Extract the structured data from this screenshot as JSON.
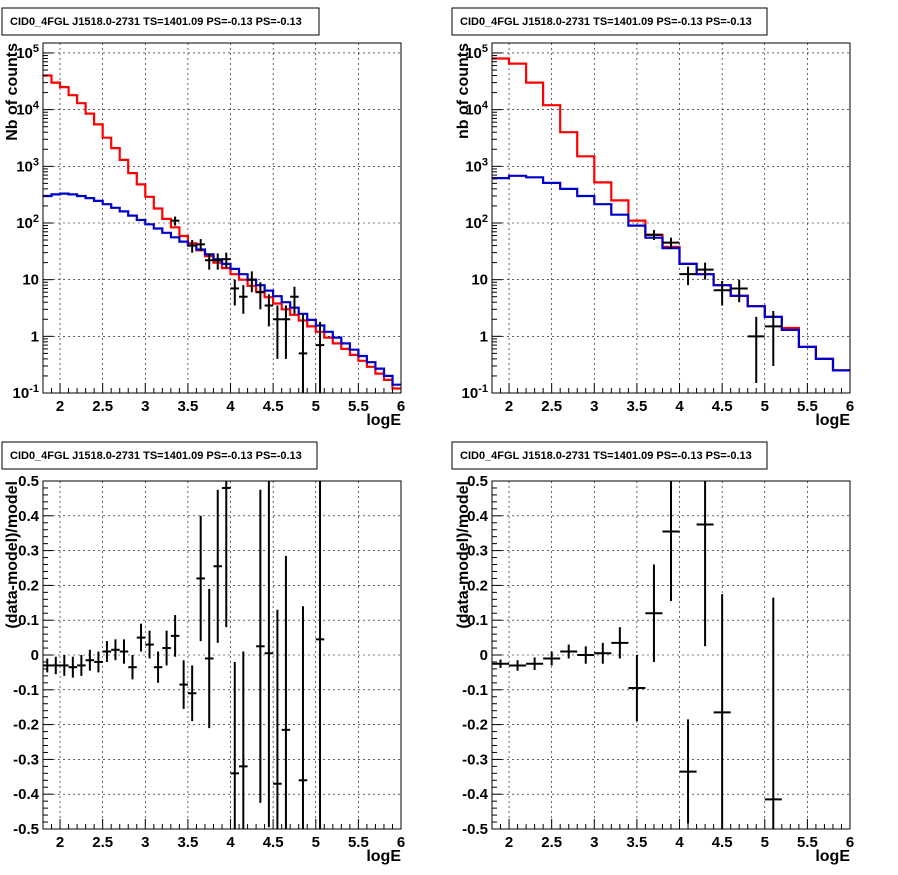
{
  "chart_data": [
    {
      "type": "line",
      "title": "CID0_4FGL J1518.0-2731 TS=1401.09 PS=-0.13 PS=-0.13",
      "xlabel": "logE",
      "ylabel": "Nb of counts",
      "xlim": [
        1.8,
        6.0
      ],
      "ylim": [
        0.1,
        150000
      ],
      "yscale": "log",
      "grid": true,
      "xticks": [
        "2",
        "2.5",
        "3",
        "3.5",
        "4",
        "4.5",
        "5",
        "5.5",
        "6"
      ],
      "yticks": [
        "10^-1",
        "1",
        "10",
        "10^2",
        "10^3",
        "10^4",
        "10^5"
      ],
      "step_width": 0.1,
      "series": [
        {
          "color": "#ff0000",
          "style": "step",
          "x": [
            1.8,
            1.9,
            2.0,
            2.1,
            2.2,
            2.3,
            2.4,
            2.5,
            2.6,
            2.7,
            2.8,
            2.9,
            3.0,
            3.1,
            3.2,
            3.3,
            3.4,
            3.5,
            3.6,
            3.7,
            3.8,
            3.9,
            4.0,
            4.1,
            4.2,
            4.3,
            4.4,
            4.5,
            4.6,
            4.7,
            4.8,
            4.9,
            5.0,
            5.1,
            5.2,
            5.3,
            5.4,
            5.5,
            5.6,
            5.7,
            5.8,
            5.9
          ],
          "y": [
            40000,
            30000,
            25000,
            18000,
            13000,
            8500,
            5500,
            3200,
            2100,
            1300,
            760,
            480,
            290,
            180,
            118,
            84,
            59,
            44,
            33,
            26,
            20,
            16,
            12.5,
            10,
            7.8,
            6.1,
            4.9,
            3.8,
            3.0,
            2.4,
            1.9,
            1.5,
            1.2,
            0.95,
            0.75,
            0.6,
            0.47,
            0.37,
            0.29,
            0.22,
            0.17,
            0.12
          ]
        },
        {
          "color": "#0000cc",
          "style": "step",
          "x": [
            1.8,
            1.9,
            2.0,
            2.1,
            2.2,
            2.3,
            2.4,
            2.5,
            2.6,
            2.7,
            2.8,
            2.9,
            3.0,
            3.1,
            3.2,
            3.3,
            3.4,
            3.5,
            3.6,
            3.7,
            3.8,
            3.9,
            4.0,
            4.1,
            4.2,
            4.3,
            4.4,
            4.5,
            4.6,
            4.7,
            4.8,
            4.9,
            5.0,
            5.1,
            5.2,
            5.3,
            5.4,
            5.5,
            5.6,
            5.7,
            5.8,
            5.9
          ],
          "y": [
            300,
            320,
            330,
            320,
            300,
            275,
            245,
            215,
            185,
            160,
            135,
            113,
            95,
            80,
            67,
            56,
            47,
            40,
            34,
            28,
            23,
            19,
            15.5,
            12.5,
            10,
            8,
            6.4,
            5.1,
            4,
            3.2,
            2.5,
            1.95,
            1.55,
            1.2,
            0.95,
            0.75,
            0.58,
            0.45,
            0.35,
            0.27,
            0.2,
            0.14
          ]
        },
        {
          "color": "#000000",
          "style": "points",
          "x": [
            3.35,
            3.55,
            3.65,
            3.75,
            3.85,
            3.95,
            4.05,
            4.15,
            4.25,
            4.35,
            4.45,
            4.55,
            4.65,
            4.75,
            4.85,
            5.05
          ],
          "y": [
            110,
            40,
            42,
            22,
            22,
            23,
            7,
            5,
            10,
            6,
            3.5,
            2,
            2,
            5,
            0.5,
            0.7
          ],
          "ylow": [
            90,
            30,
            32,
            15,
            15,
            16,
            3.5,
            2.5,
            6,
            3,
            1.5,
            0.4,
            0.4,
            2.5,
            0.1,
            0.1
          ],
          "yhigh": [
            130,
            50,
            52,
            29,
            29,
            30,
            10,
            8,
            14,
            9,
            5.5,
            3.5,
            3.5,
            7.5,
            2.5,
            1.8
          ]
        }
      ]
    },
    {
      "type": "line",
      "title": "CID0_4FGL J1518.0-2731 TS=1401.09 PS=-0.13 PS=-0.13",
      "xlabel": "logE",
      "ylabel": "nb of counts",
      "xlim": [
        1.8,
        6.0
      ],
      "ylim": [
        0.1,
        150000
      ],
      "yscale": "log",
      "grid": true,
      "xticks": [
        "2",
        "2.5",
        "3",
        "3.5",
        "4",
        "4.5",
        "5",
        "5.5",
        "6"
      ],
      "yticks": [
        "10^-1",
        "1",
        "10",
        "10^2",
        "10^3",
        "10^4",
        "10^5"
      ],
      "step_width": 0.2,
      "series": [
        {
          "color": "#ff0000",
          "style": "step",
          "x": [
            1.8,
            2.0,
            2.2,
            2.4,
            2.6,
            2.8,
            3.0,
            3.2,
            3.4,
            3.6,
            3.8,
            4.0,
            4.2,
            4.4,
            4.6,
            4.8,
            5.0,
            5.2,
            5.4,
            5.6,
            5.8
          ],
          "y": [
            80000,
            65000,
            30000,
            12000,
            4000,
            1500,
            520,
            250,
            110,
            62,
            38,
            19,
            12.5,
            8,
            5.2,
            3.4,
            2.2,
            1.4,
            0.65,
            0.4,
            0.25
          ]
        },
        {
          "color": "#0000cc",
          "style": "step",
          "x": [
            1.8,
            2.0,
            2.2,
            2.4,
            2.6,
            2.8,
            3.0,
            3.2,
            3.4,
            3.6,
            3.8,
            4.0,
            4.2,
            4.4,
            4.6,
            4.8,
            5.0,
            5.2,
            5.4,
            5.6,
            5.8
          ],
          "y": [
            620,
            680,
            640,
            510,
            400,
            300,
            215,
            140,
            90,
            55,
            36,
            19,
            12.5,
            8,
            5.2,
            3.4,
            2.2,
            1.3,
            0.65,
            0.4,
            0.25
          ]
        },
        {
          "color": "#000000",
          "style": "points",
          "x": [
            3.7,
            3.9,
            4.1,
            4.3,
            4.5,
            4.7,
            4.9,
            5.1
          ],
          "y": [
            62,
            45,
            12.5,
            15,
            6.5,
            7,
            1,
            1.5
          ],
          "ylow": [
            50,
            35,
            8,
            10,
            3.5,
            4,
            0.15,
            0.3
          ],
          "yhigh": [
            75,
            55,
            17,
            20,
            9.5,
            10,
            2.2,
            2.8
          ]
        }
      ]
    },
    {
      "type": "scatter",
      "title": "CID0_4FGL J1518.0-2731 TS=1401.09 PS=-0.13 PS=-0.13",
      "xlabel": "logE",
      "ylabel": "(data-model)/model",
      "xlim": [
        1.8,
        6.0
      ],
      "ylim": [
        -0.5,
        0.5
      ],
      "grid": true,
      "xticks": [
        "2",
        "2.5",
        "3",
        "3.5",
        "4",
        "4.5",
        "5",
        "5.5",
        "6"
      ],
      "yticks": [
        "-0.5",
        "-0.4",
        "-0.3",
        "-0.2",
        "-0.1",
        "0",
        "0.1",
        "0.2",
        "0.3",
        "0.4",
        "0.5"
      ],
      "xerr": 0.05,
      "series": [
        {
          "color": "#000000",
          "x": [
            1.85,
            1.95,
            2.05,
            2.15,
            2.25,
            2.35,
            2.45,
            2.55,
            2.65,
            2.75,
            2.85,
            2.95,
            3.05,
            3.15,
            3.25,
            3.35,
            3.45,
            3.55,
            3.65,
            3.75,
            3.85,
            3.95,
            4.05,
            4.15,
            4.35,
            4.45,
            4.55,
            4.65,
            4.85,
            5.05
          ],
          "y": [
            -0.03,
            -0.03,
            -0.03,
            -0.035,
            -0.03,
            -0.015,
            -0.02,
            0.01,
            0.015,
            0.01,
            -0.035,
            0.05,
            0.03,
            -0.035,
            0.02,
            0.055,
            -0.085,
            -0.11,
            0.22,
            -0.01,
            0.255,
            0.48,
            -0.34,
            -0.32,
            0.025,
            0.005,
            -0.37,
            -0.215,
            -0.36,
            0.045
          ],
          "yerr": [
            0.02,
            0.025,
            0.03,
            0.03,
            0.03,
            0.03,
            0.03,
            0.03,
            0.03,
            0.035,
            0.035,
            0.04,
            0.04,
            0.045,
            0.05,
            0.06,
            0.07,
            0.08,
            0.18,
            0.2,
            0.22,
            0.4,
            0.32,
            0.33,
            0.45,
            0.5,
            0.5,
            0.5,
            0.5,
            0.6
          ]
        }
      ]
    },
    {
      "type": "scatter",
      "title": "CID0_4FGL J1518.0-2731 TS=1401.09 PS=-0.13 PS=-0.13",
      "xlabel": "logE",
      "ylabel": "(data-model)/model",
      "xlim": [
        1.8,
        6.0
      ],
      "ylim": [
        -0.5,
        0.5
      ],
      "grid": true,
      "xticks": [
        "2",
        "2.5",
        "3",
        "3.5",
        "4",
        "4.5",
        "5",
        "5.5",
        "6"
      ],
      "yticks": [
        "-0.5",
        "-0.4",
        "-0.3",
        "-0.2",
        "-0.1",
        "0",
        "0.1",
        "0.2",
        "0.3",
        "0.4",
        "0.5"
      ],
      "xerr": 0.1,
      "series": [
        {
          "color": "#000000",
          "x": [
            1.9,
            2.1,
            2.3,
            2.5,
            2.7,
            2.9,
            3.1,
            3.3,
            3.5,
            3.7,
            3.9,
            4.1,
            4.3,
            4.5,
            5.1
          ],
          "y": [
            -0.025,
            -0.03,
            -0.025,
            -0.01,
            0.01,
            0.0,
            0.005,
            0.035,
            -0.095,
            0.12,
            0.355,
            -0.335,
            0.375,
            -0.165,
            -0.415
          ],
          "yerr": [
            0.012,
            0.015,
            0.018,
            0.02,
            0.02,
            0.025,
            0.03,
            0.045,
            0.095,
            0.14,
            0.2,
            0.15,
            0.35,
            0.34,
            0.58
          ]
        }
      ]
    }
  ]
}
